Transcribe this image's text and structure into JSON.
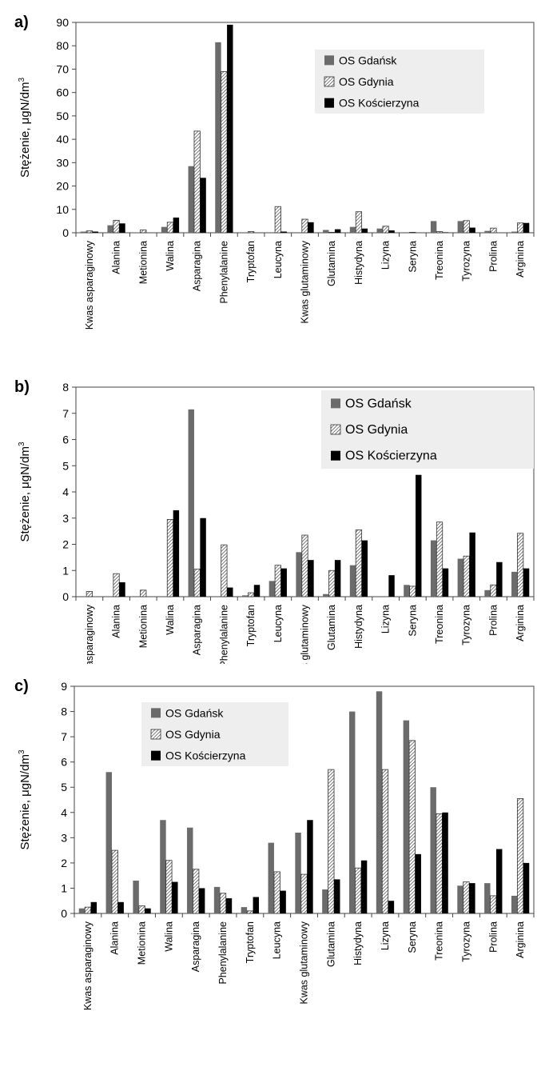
{
  "chart_data": [
    {
      "panel_label": "a)",
      "type": "bar",
      "ylabel": "Stężenie, μgN/dm",
      "ylabel_sup": "3",
      "ylim": [
        0,
        90
      ],
      "yticks": [
        "0",
        "10",
        "20",
        "30",
        "40",
        "50",
        "60",
        "70",
        "80",
        "90"
      ],
      "legend_position": "top-right",
      "categories": [
        "Kwas asparaginowy",
        "Alanina",
        "Metionina",
        "Walina",
        "Asparagina",
        "Phenylalanine",
        "Tryptofan",
        "Leucyna",
        "Kwas glutaminowy",
        "Glutamina",
        "Histydyna",
        "Lizyna",
        "Seryna",
        "Treonina",
        "Tyrozyna",
        "Prolina",
        "Arginina"
      ],
      "series": [
        {
          "name": "OS Gdańsk",
          "values": [
            0.5,
            3.2,
            0.2,
            2.5,
            28.5,
            81.5,
            0,
            0,
            0,
            1.2,
            2.5,
            1.8,
            0,
            5.0,
            5.0,
            0.8,
            0.5
          ]
        },
        {
          "name": "OS Gdynia",
          "values": [
            0.8,
            5.3,
            1.2,
            4.5,
            43.5,
            69.0,
            0.5,
            11.2,
            5.8,
            0.2,
            9.0,
            2.8,
            0.2,
            0.5,
            5.2,
            2.0,
            4.2
          ]
        },
        {
          "name": "OS Kościerzyna",
          "values": [
            0.5,
            4.0,
            0,
            6.5,
            23.5,
            89.0,
            0,
            0.5,
            4.5,
            1.5,
            1.8,
            1.0,
            0,
            0.2,
            2.2,
            0,
            4.2
          ]
        }
      ]
    },
    {
      "panel_label": "b)",
      "type": "bar",
      "ylabel": "Stężenie, μgN/dm",
      "ylabel_sup": "3",
      "ylim": [
        0,
        8
      ],
      "yticks": [
        "0",
        "1",
        "2",
        "3",
        "4",
        "5",
        "6",
        "7",
        "8"
      ],
      "legend_position": "top-right",
      "categories": [
        "Kwas asparaginowy",
        "Alanina",
        "Metionina",
        "Walina",
        "Asparagina",
        "Phenylalanine",
        "Tryptofan",
        "Leucyna",
        "Kwas glutaminowy",
        "Glutamina",
        "Histydyna",
        "Lizyna",
        "Seryna",
        "Treonina",
        "Tyrozyna",
        "Prolina",
        "Arginina"
      ],
      "series": [
        {
          "name": "OS Gdańsk",
          "values": [
            0,
            0,
            0,
            0,
            7.15,
            0,
            0.05,
            0.6,
            1.7,
            0.1,
            1.2,
            0,
            0.45,
            2.15,
            1.45,
            0.25,
            0.95
          ]
        },
        {
          "name": "OS Gdynia",
          "values": [
            0.2,
            0.88,
            0.25,
            2.95,
            1.05,
            1.98,
            0.15,
            1.2,
            2.35,
            1.0,
            2.55,
            0,
            0.4,
            2.85,
            1.55,
            0.45,
            2.42
          ]
        },
        {
          "name": "OS Kościerzyna",
          "values": [
            0,
            0.55,
            0,
            3.3,
            3.0,
            0.35,
            0.45,
            1.08,
            1.4,
            1.4,
            2.15,
            0.82,
            4.65,
            1.08,
            2.45,
            1.32,
            1.08
          ]
        }
      ]
    },
    {
      "panel_label": "c)",
      "type": "bar",
      "ylabel": "Stężenie, μgN/dm",
      "ylabel_sup": "3",
      "ylim": [
        0,
        9
      ],
      "yticks": [
        "0",
        "1",
        "2",
        "3",
        "4",
        "5",
        "6",
        "7",
        "8",
        "9"
      ],
      "legend_position": "top-left",
      "categories": [
        "Kwas asparaginowy",
        "Alanina",
        "Metionina",
        "Walina",
        "Asparagina",
        "Phenylalanine",
        "Tryptofan",
        "Leucyna",
        "Kwas glutaminowy",
        "Glutamina",
        "Histydyna",
        "Lizyna",
        "Seryna",
        "Treonina",
        "Tyrozyna",
        "Prolina",
        "Arginina"
      ],
      "series": [
        {
          "name": "OS Gdańsk",
          "values": [
            0.2,
            5.6,
            1.3,
            3.7,
            3.4,
            1.05,
            0.25,
            2.8,
            3.2,
            0.95,
            8.0,
            8.8,
            7.65,
            5.0,
            1.1,
            1.2,
            0.7
          ]
        },
        {
          "name": "OS Gdynia",
          "values": [
            0.25,
            2.5,
            0.3,
            2.1,
            1.75,
            0.8,
            0.1,
            1.65,
            1.55,
            5.7,
            1.8,
            5.7,
            6.85,
            3.95,
            1.25,
            0.7,
            4.55
          ]
        },
        {
          "name": "OS Kościerzyna",
          "values": [
            0.45,
            0.45,
            0.2,
            1.25,
            1.0,
            0.6,
            0.65,
            0.9,
            3.7,
            1.35,
            2.1,
            0.5,
            2.35,
            4.0,
            1.2,
            2.55,
            2.0
          ]
        }
      ]
    }
  ]
}
